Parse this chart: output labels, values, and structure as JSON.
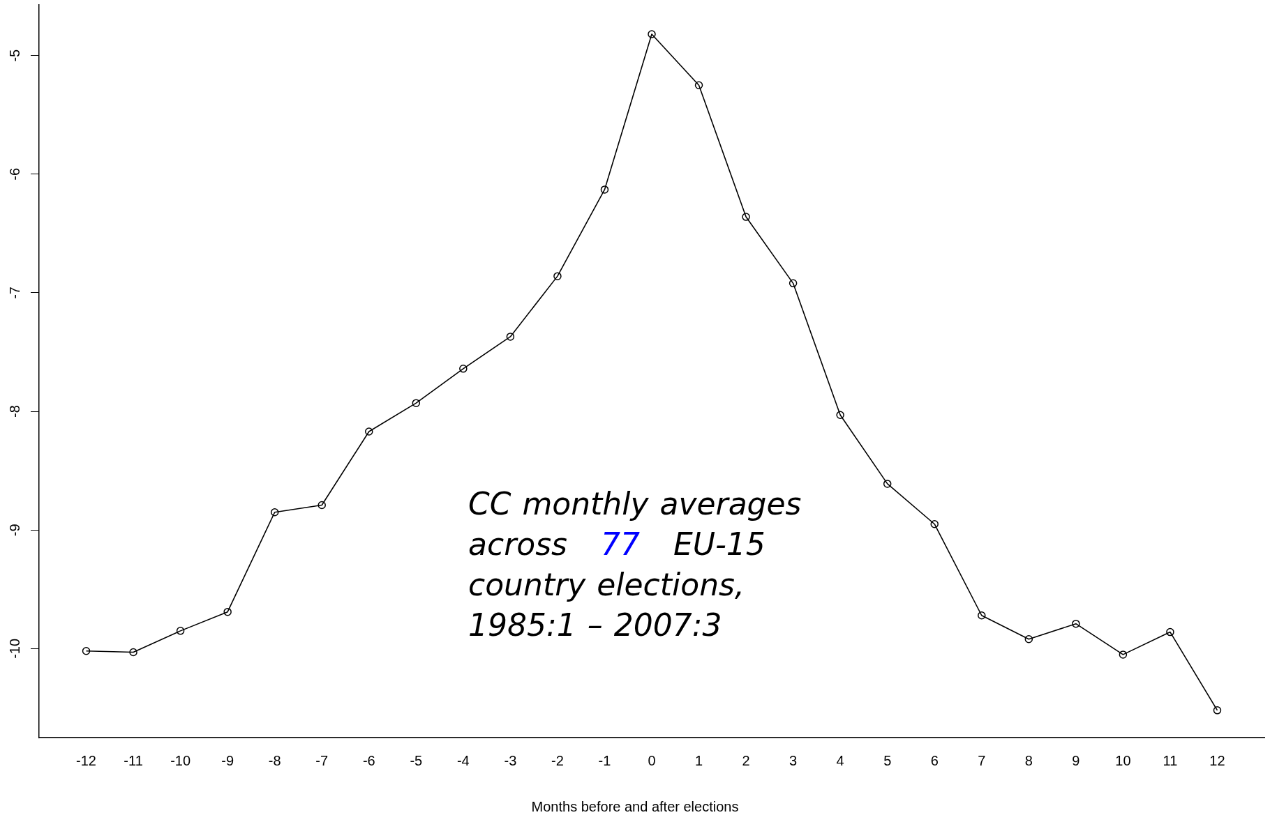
{
  "chart_data": {
    "type": "line",
    "xlabel": "Months before and after elections",
    "x": [
      -12,
      -11,
      -10,
      -9,
      -8,
      -7,
      -6,
      -5,
      -4,
      -3,
      -2,
      -1,
      0,
      1,
      2,
      3,
      4,
      5,
      6,
      7,
      8,
      9,
      10,
      11,
      12
    ],
    "series": [
      {
        "color": "#000000",
        "values": [
          -10.02,
          -10.03,
          -9.85,
          -9.69,
          -8.85,
          -8.79,
          -8.17,
          -7.93,
          -7.64,
          -7.37,
          -6.86,
          -6.13,
          -4.82,
          -5.25,
          -6.36,
          -6.92,
          -8.03,
          -8.61,
          -8.95,
          -9.72,
          -9.92,
          -9.79,
          -10.05,
          -9.86,
          -10.52
        ]
      }
    ],
    "xlim": [
      -13,
      13
    ],
    "xticks": [
      -12,
      -11,
      -10,
      -9,
      -8,
      -7,
      -6,
      -5,
      -4,
      -3,
      -2,
      -1,
      0,
      1,
      2,
      3,
      4,
      5,
      6,
      7,
      8,
      9,
      10,
      11,
      12
    ],
    "ylim": [
      -10.75,
      -4.57
    ],
    "yticks": [
      -10,
      -9,
      -8,
      -7,
      -6,
      -5
    ],
    "marker": "circle",
    "line_style": "solid",
    "grid": false,
    "legend": false,
    "annotations": [
      "CC monthly averages across",
      "77",
      "EU-15 country elections, 1985:1 – 2007:3"
    ]
  }
}
